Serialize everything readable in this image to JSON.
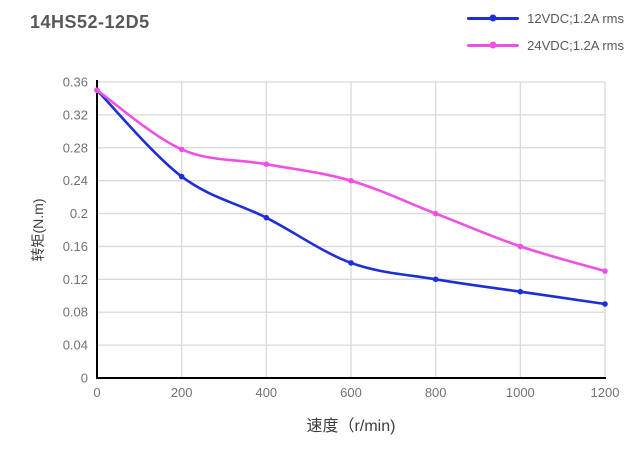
{
  "chart_data": {
    "type": "line",
    "title": "14HS52-12D5",
    "xlabel": "速度（r/min)",
    "ylabel": "转矩(N.m)",
    "x": [
      0,
      200,
      400,
      600,
      800,
      1000,
      1200
    ],
    "series": [
      {
        "name": "12VDC;1.2A rms",
        "color": "#1e2fd7",
        "values": [
          0.35,
          0.245,
          0.195,
          0.14,
          0.12,
          0.105,
          0.09
        ]
      },
      {
        "name": "24VDC;1.2A rms",
        "color": "#f150e4",
        "values": [
          0.35,
          0.278,
          0.26,
          0.24,
          0.2,
          0.16,
          0.13
        ]
      }
    ],
    "xlim": [
      0,
      1200
    ],
    "ylim": [
      0,
      0.36
    ],
    "x_ticks": [
      "0",
      "200",
      "400",
      "600",
      "800",
      "1000",
      "1200"
    ],
    "y_ticks": [
      "0",
      "0.04",
      "0.08",
      "0.12",
      "0.16",
      "0.2",
      "0.24",
      "0.28",
      "0.32",
      "0.36"
    ],
    "grid": true,
    "smooth": true,
    "legend_position": "top-right"
  },
  "styles": {
    "background": "#ffffff",
    "grid_color": "#d9d9d9",
    "axis_color": "#000000",
    "tick_label_color": "#737373",
    "title_color": "#595959",
    "legend_text_color": "#595959",
    "axis_title_color": "#3d3d3d"
  }
}
